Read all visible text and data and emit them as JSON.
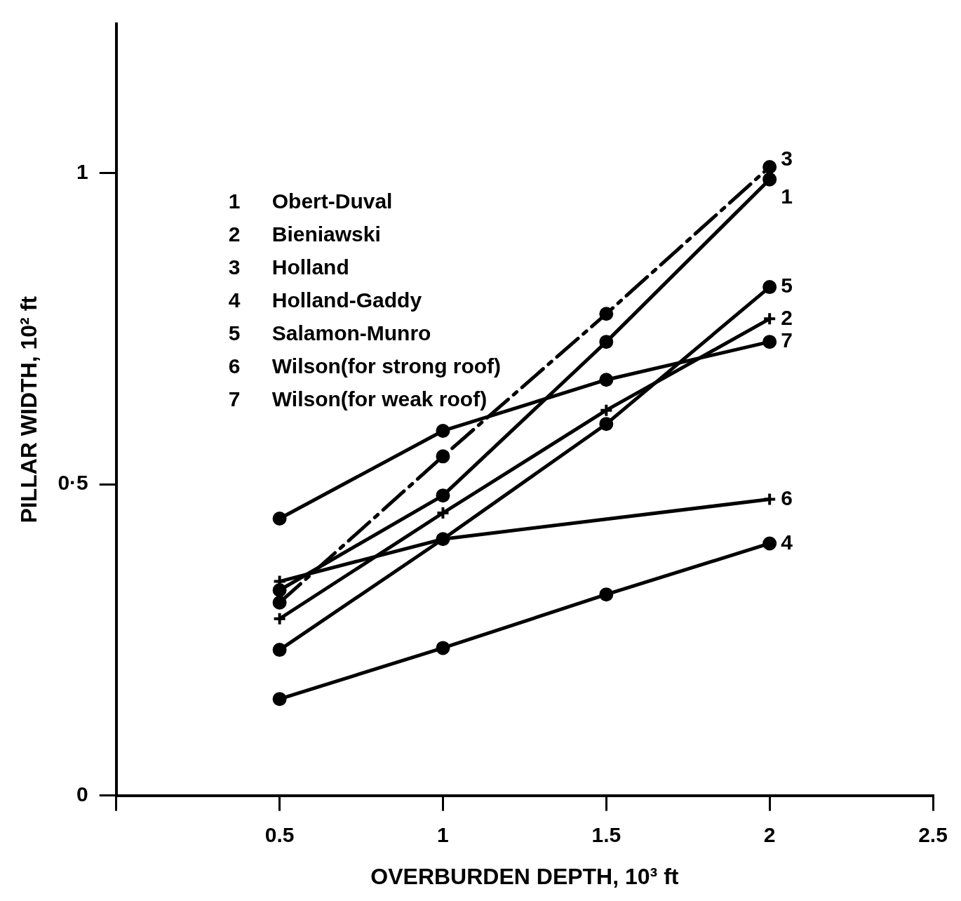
{
  "chart_data": {
    "type": "line",
    "xlabel": "OVERBURDEN DEPTH, 10³ ft",
    "ylabel": "PILLAR WIDTH, 10² ft",
    "xlim": [
      0,
      2.5
    ],
    "xticks": [
      {
        "value": 0,
        "label": null
      },
      0.5,
      1,
      1.5,
      2,
      2.5
    ],
    "ylim": [
      0,
      1.24
    ],
    "yticks": [
      0,
      {
        "value": 0.5,
        "label": "0·5"
      },
      1
    ],
    "grid": false,
    "series": [
      {
        "name": "1",
        "color": "#000000",
        "x": [
          0.5,
          1,
          1.5,
          2
        ],
        "values": [
          0.33,
          0.482,
          0.729,
          0.99
        ],
        "marker": "circle"
      },
      {
        "name": "2",
        "color": "#000000",
        "x": [
          0.5,
          1,
          1.5,
          2
        ],
        "values": [
          0.284,
          0.454,
          0.619,
          0.766
        ],
        "marker": "cross"
      },
      {
        "name": "3",
        "color": "#000000",
        "x": [
          0.5,
          1,
          1.5,
          2
        ],
        "values": [
          0.31,
          0.545,
          0.774,
          1.01
        ],
        "marker": "circle",
        "line_style": "dashed"
      },
      {
        "name": "4",
        "color": "#000000",
        "x": [
          0.5,
          1,
          1.5,
          2
        ],
        "values": [
          0.155,
          0.237,
          0.323,
          0.405
        ],
        "marker": "circle"
      },
      {
        "name": "5",
        "color": "#000000",
        "x": [
          0.5,
          1,
          1.5,
          2
        ],
        "values": [
          0.234,
          0.412,
          0.597,
          0.817
        ],
        "marker": "circle"
      },
      {
        "name": "6",
        "color": "#000000",
        "x": [
          0.5,
          1,
          2
        ],
        "values": [
          0.344,
          0.412,
          0.476
        ],
        "marker": "cross"
      },
      {
        "name": "7",
        "color": "#000000",
        "x": [
          0.5,
          1,
          1.5,
          2
        ],
        "values": [
          0.445,
          0.586,
          0.668,
          0.729
        ],
        "marker": "circle"
      }
    ],
    "annotations": [
      "1 Obert-Duval",
      "2 Bieniawski",
      "3 Holland",
      "4 Holland-Gaddy",
      "5 Salamon-Munro",
      "6 Wilson(for strong roof)",
      "7 Wilson(for weak roof)"
    ]
  }
}
